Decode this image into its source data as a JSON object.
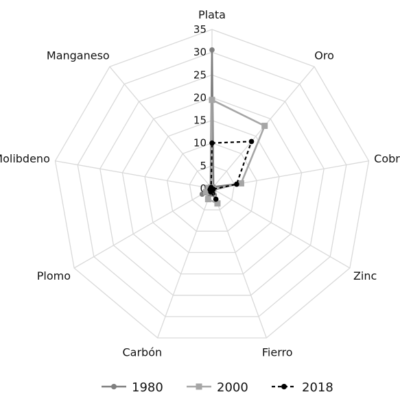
{
  "chart_data": {
    "type": "radar",
    "title": "",
    "categories": [
      "Plata",
      "Oro",
      "Cobre",
      "Zinc",
      "Fierro",
      "Carbón",
      "Plomo",
      "Molibdeno",
      "Manganeso"
    ],
    "rlim": [
      0,
      35
    ],
    "ticks": [
      "0",
      "5",
      "10",
      "15",
      "20",
      "25",
      "30",
      "35"
    ],
    "grid": true,
    "legend_position": "bottom",
    "series": [
      {
        "name": "1980",
        "color": "#7f7f7f",
        "dash": "solid",
        "marker": "circle",
        "values": [
          30.5,
          0.5,
          5.5,
          0.5,
          1.5,
          1.5,
          2.5,
          0.5,
          0.5
        ]
      },
      {
        "name": "2000",
        "color": "#a6a6a6",
        "dash": "solid",
        "marker": "square",
        "values": [
          19.5,
          18,
          6.5,
          0.3,
          3.5,
          2.5,
          1.5,
          0.8,
          0.3
        ]
      },
      {
        "name": "2018",
        "color": "#000000",
        "dash": "dashed",
        "marker": "circle",
        "values": [
          10,
          13.5,
          5.5,
          0.3,
          2.5,
          0.8,
          0.5,
          0.3,
          0.3
        ]
      }
    ]
  }
}
